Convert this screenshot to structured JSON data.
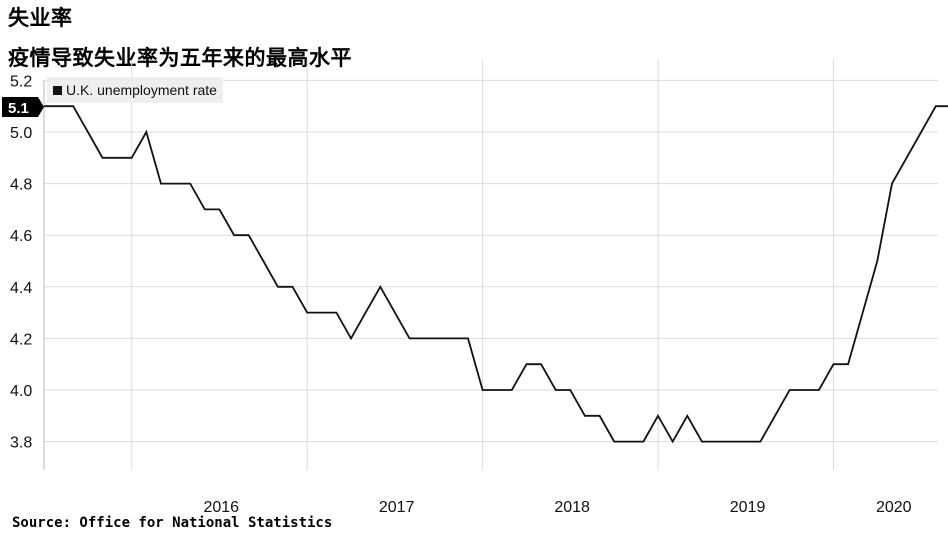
{
  "header": {
    "title": "失业率",
    "subtitle": "疫情导致失业率为五年来的最高水平"
  },
  "footer": {
    "source": "Source: Office for National Statistics"
  },
  "colors": {
    "line": "#111111",
    "grid": "#dcdcdc",
    "legend_bg": "#eeeeee",
    "badge_bg": "#000000"
  },
  "chart_data": {
    "type": "line",
    "title": "",
    "xlabel": "",
    "ylabel": "",
    "ylim": [
      3.6,
      5.2
    ],
    "yticks": [
      5.2,
      5.0,
      4.8,
      4.6,
      4.4,
      4.2,
      4.0,
      3.8
    ],
    "ytick_labels": [
      "5.2",
      "5.0",
      "4.8",
      "4.6",
      "4.4",
      "4.2",
      "4.0",
      "3.8"
    ],
    "xtick_labels": [
      "2016",
      "2017",
      "2018",
      "2019",
      "2020"
    ],
    "grid": true,
    "legend_position": "top-left",
    "last_value_label": "5.1",
    "series": [
      {
        "name": "U.K. unemployment rate",
        "x": [
          "2015-07",
          "2015-08",
          "2015-09",
          "2015-10",
          "2015-11",
          "2015-12",
          "2016-01",
          "2016-02",
          "2016-03",
          "2016-04",
          "2016-05",
          "2016-06",
          "2016-07",
          "2016-08",
          "2016-09",
          "2016-10",
          "2016-11",
          "2016-12",
          "2017-01",
          "2017-02",
          "2017-03",
          "2017-04",
          "2017-05",
          "2017-06",
          "2017-07",
          "2017-08",
          "2017-09",
          "2017-10",
          "2017-11",
          "2017-12",
          "2018-01",
          "2018-02",
          "2018-03",
          "2018-04",
          "2018-05",
          "2018-06",
          "2018-07",
          "2018-08",
          "2018-09",
          "2018-10",
          "2018-11",
          "2018-12",
          "2019-01",
          "2019-02",
          "2019-03",
          "2019-04",
          "2019-05",
          "2019-06",
          "2019-07",
          "2019-08",
          "2019-09",
          "2019-10",
          "2019-11",
          "2019-12",
          "2020-01",
          "2020-02",
          "2020-03",
          "2020-04",
          "2020-05",
          "2020-06",
          "2020-07",
          "2020-08",
          "2020-09",
          "2020-10"
        ],
        "values": [
          5.1,
          5.1,
          5.1,
          5.0,
          4.9,
          4.9,
          4.9,
          5.0,
          4.8,
          4.8,
          4.8,
          4.7,
          4.7,
          4.6,
          4.6,
          4.5,
          4.4,
          4.4,
          4.3,
          4.3,
          4.3,
          4.2,
          4.3,
          4.4,
          4.3,
          4.2,
          4.2,
          4.2,
          4.2,
          4.2,
          4.0,
          4.0,
          4.0,
          4.1,
          4.1,
          4.0,
          4.0,
          3.9,
          3.9,
          3.8,
          3.8,
          3.8,
          3.9,
          3.8,
          3.9,
          3.8,
          3.8,
          3.8,
          3.8,
          3.8,
          3.9,
          4.0,
          4.0,
          4.0,
          4.1,
          4.1,
          4.3,
          4.5,
          4.8,
          4.9,
          5.0,
          5.1,
          5.1,
          5.1
        ]
      }
    ]
  }
}
